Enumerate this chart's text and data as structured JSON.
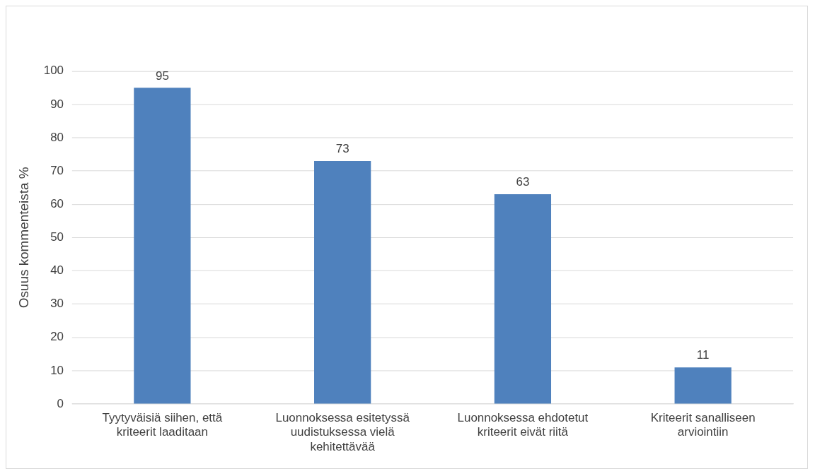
{
  "chart_data": {
    "type": "bar",
    "ylabel": "Osuus kommenteista %",
    "categories": [
      "Tyytyväisiä siihen, että kriteerit laaditaan",
      "Luonnoksessa esitetyssä uudistuksessa vielä kehitettävää",
      "Luonnoksessa ehdotetut kriteerit eivät riitä",
      "Kriteerit sanalliseen arviointiin"
    ],
    "values": [
      95,
      73,
      63,
      11
    ],
    "color": "#4f81bd",
    "ylim": [
      0,
      100
    ],
    "yticks": [
      0,
      10,
      20,
      30,
      40,
      50,
      60,
      70,
      80,
      90,
      100
    ],
    "grid": "y",
    "data_labels": true
  }
}
